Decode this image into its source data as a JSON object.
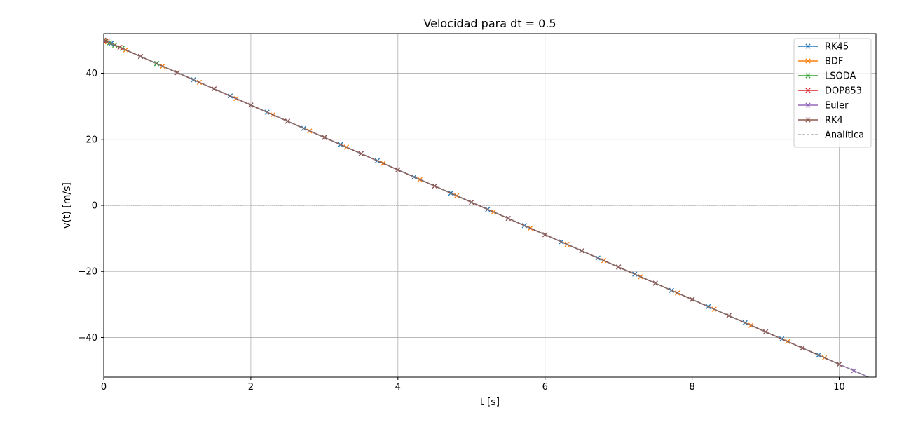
{
  "chart_data": {
    "type": "line",
    "title": "Velocidad para dt = 0.5",
    "xlabel": "t [s]",
    "ylabel": "v(t) [m/s]",
    "xlim": [
      0,
      10.5
    ],
    "ylim": [
      -52,
      52
    ],
    "xticks": [
      0,
      2,
      4,
      6,
      8,
      10
    ],
    "yticks": [
      -40,
      -20,
      0,
      20,
      40
    ],
    "xtick_labels": [
      "0",
      "2",
      "4",
      "6",
      "8",
      "10"
    ],
    "ytick_labels": [
      "−40",
      "−20",
      "0",
      "20",
      "40"
    ],
    "grid": true,
    "legend_position": "top-right",
    "reference_line": {
      "y": 0,
      "style": "dotted",
      "color": "#808080"
    },
    "series": [
      {
        "name": "RK45",
        "color": "#1f77b4",
        "marker": "x",
        "style": "solid",
        "x": [
          0,
          0.1,
          0.72,
          1.22,
          1.72,
          2.22,
          2.72,
          3.22,
          3.72,
          4.22,
          4.72,
          5.22,
          5.72,
          6.22,
          6.72,
          7.22,
          7.72,
          8.22,
          8.72,
          9.22,
          9.72
        ],
        "y": [
          50,
          49.02,
          42.94,
          38.04,
          33.13,
          28.22,
          23.32,
          18.41,
          13.51,
          8.6,
          3.7,
          -1.21,
          -6.11,
          -11.02,
          -15.92,
          -20.83,
          -25.73,
          -30.64,
          -35.54,
          -40.45,
          -45.35
        ]
      },
      {
        "name": "BDF",
        "color": "#ff7f0e",
        "marker": "x",
        "style": "solid",
        "x": [
          0,
          0.05,
          0.15,
          0.3,
          0.8,
          1.3,
          1.8,
          2.3,
          2.8,
          3.3,
          3.8,
          4.3,
          4.8,
          5.3,
          5.8,
          6.3,
          6.8,
          7.3,
          7.8,
          8.3,
          8.8,
          9.3,
          9.8
        ],
        "y": [
          50,
          49.51,
          48.53,
          47.06,
          42.15,
          37.25,
          32.34,
          27.44,
          22.53,
          17.63,
          12.72,
          7.82,
          2.91,
          -1.99,
          -6.9,
          -11.8,
          -16.71,
          -21.61,
          -26.52,
          -31.42,
          -36.33,
          -41.23,
          -46.14
        ]
      },
      {
        "name": "LSODA",
        "color": "#2ca02c",
        "marker": "x",
        "style": "solid",
        "x": [
          0,
          0.02,
          0.08,
          0.15,
          0.25,
          0.72
        ],
        "y": [
          50,
          49.8,
          49.22,
          48.53,
          47.55,
          42.94
        ]
      },
      {
        "name": "DOP853",
        "color": "#d62728",
        "marker": "x",
        "style": "solid",
        "x": [
          0,
          0.03,
          0.22,
          0.5
        ],
        "y": [
          50,
          49.71,
          47.84,
          45.1
        ]
      },
      {
        "name": "Euler",
        "color": "#9467bd",
        "marker": "x",
        "style": "solid",
        "x": [
          0,
          0.5,
          1,
          1.5,
          2,
          2.5,
          3,
          3.5,
          4,
          4.5,
          5,
          5.5,
          6,
          6.5,
          7,
          7.5,
          8,
          8.5,
          9,
          9.5,
          10,
          10.2,
          10.5
        ],
        "y": [
          50,
          45.1,
          40.19,
          35.29,
          30.38,
          25.48,
          20.57,
          15.67,
          10.76,
          5.86,
          0.95,
          -3.95,
          -8.86,
          -13.76,
          -18.67,
          -23.57,
          -28.48,
          -33.38,
          -38.29,
          -43.19,
          -48.1,
          -50.06,
          -53.0
        ]
      },
      {
        "name": "RK4",
        "color": "#8c564b",
        "marker": "x",
        "style": "solid",
        "x": [
          0,
          0.5,
          1,
          1.5,
          2,
          2.5,
          3,
          3.5,
          4,
          4.5,
          5,
          5.5,
          6,
          6.5,
          7,
          7.5,
          8,
          8.5,
          9,
          9.5,
          10
        ],
        "y": [
          50,
          45.1,
          40.19,
          35.29,
          30.38,
          25.48,
          20.57,
          15.67,
          10.76,
          5.86,
          0.95,
          -3.95,
          -8.86,
          -13.76,
          -18.67,
          -23.57,
          -28.48,
          -33.38,
          -38.29,
          -43.19,
          -48.1
        ]
      },
      {
        "name": "Analítica",
        "color": "#808080",
        "marker": "none",
        "style": "dashed",
        "x": [
          0,
          10.5
        ],
        "y": [
          50,
          -53.0
        ]
      }
    ]
  }
}
